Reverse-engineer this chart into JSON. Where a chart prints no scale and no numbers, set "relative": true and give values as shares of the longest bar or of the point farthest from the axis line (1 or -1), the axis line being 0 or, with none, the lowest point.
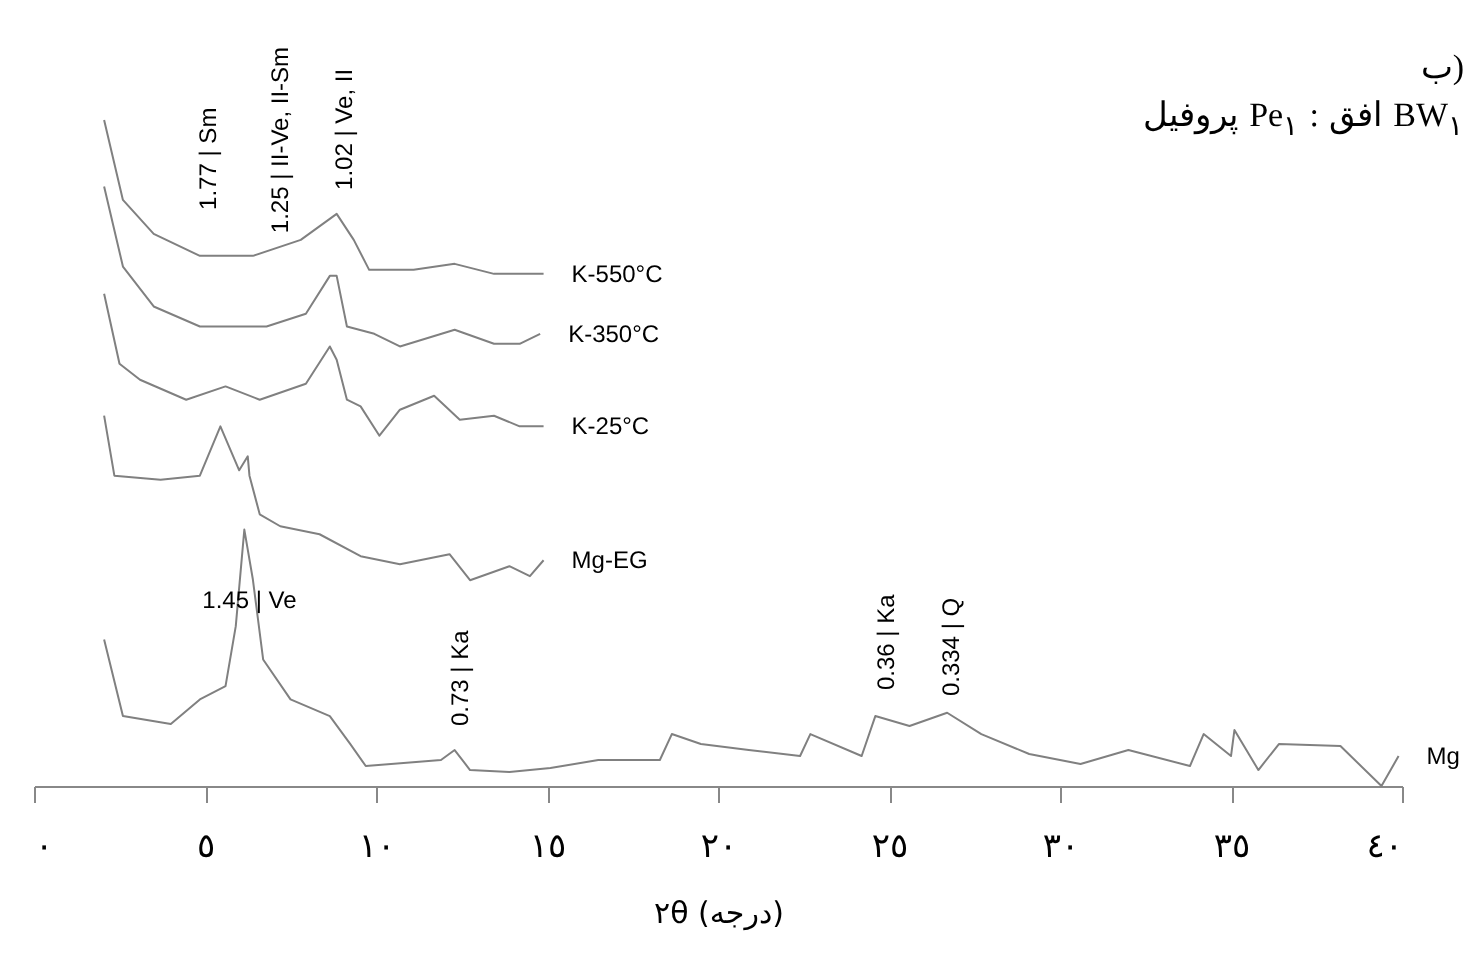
{
  "chart_data": {
    "type": "line",
    "relative": true,
    "title": "ب)",
    "subtitle": "پروفیل Pe$_{١}$ : افق BW$_{١}$",
    "xlabel": "٢θ (درجه)",
    "xlim": [
      0,
      40
    ],
    "xticks": [
      {
        "value": 0,
        "label": "٠"
      },
      {
        "value": 5,
        "label": "٥"
      },
      {
        "value": 10,
        "label": "١٠"
      },
      {
        "value": 15,
        "label": "١٥"
      },
      {
        "value": 20,
        "label": "٢٠"
      },
      {
        "value": 25,
        "label": "٢٥"
      },
      {
        "value": 30,
        "label": "٣٠"
      },
      {
        "value": 35,
        "label": "٣٥"
      },
      {
        "value": 40,
        "label": "٤٠"
      }
    ],
    "series": [
      {
        "name": "K-550°C",
        "color": "#808080",
        "x": [
          2.05,
          2.6,
          3.5,
          4.85,
          6.4,
          7.8,
          8.85,
          9.35,
          9.8,
          11.1,
          12.3,
          13.45,
          14.9
        ],
        "values": [
          1.0,
          0.88,
          0.829,
          0.796,
          0.796,
          0.82,
          0.859,
          0.82,
          0.775,
          0.775,
          0.784,
          0.769,
          0.769
        ]
      },
      {
        "name": "K-350°C",
        "color": "#808080",
        "x": [
          2.05,
          2.6,
          3.5,
          4.85,
          6.8,
          7.95,
          8.65,
          8.85,
          9.15,
          9.95,
          10.7,
          12.3,
          13.45,
          14.2,
          14.8
        ],
        "values": [
          0.9,
          0.78,
          0.72,
          0.69,
          0.69,
          0.709,
          0.766,
          0.766,
          0.69,
          0.679,
          0.66,
          0.685,
          0.664,
          0.664,
          0.679
        ]
      },
      {
        "name": "K-25°C",
        "color": "#808080",
        "x": [
          2.05,
          2.5,
          3.1,
          4.45,
          5.6,
          6.6,
          7.95,
          8.65,
          8.85,
          9.15,
          9.55,
          10.1,
          10.7,
          11.7,
          12.45,
          13.45,
          14.2,
          14.9
        ],
        "values": [
          0.739,
          0.634,
          0.61,
          0.58,
          0.6,
          0.58,
          0.604,
          0.66,
          0.64,
          0.58,
          0.57,
          0.526,
          0.565,
          0.586,
          0.55,
          0.556,
          0.54,
          0.54
        ]
      },
      {
        "name": "Mg-EG",
        "color": "#808080",
        "x": [
          2.05,
          2.35,
          3.7,
          4.85,
          5.45,
          6.0,
          6.25,
          6.3,
          6.6,
          7.2,
          8.35,
          9.55,
          10.7,
          12.15,
          12.75,
          13.9,
          14.5,
          14.9
        ],
        "values": [
          0.556,
          0.466,
          0.46,
          0.466,
          0.54,
          0.474,
          0.495,
          0.466,
          0.408,
          0.39,
          0.378,
          0.345,
          0.333,
          0.348,
          0.309,
          0.33,
          0.315,
          0.339
        ]
      },
      {
        "name": "Mg",
        "color": "#808080",
        "x": [
          2.05,
          2.6,
          4.0,
          4.85,
          5.6,
          5.9,
          6.15,
          6.4,
          6.7,
          7.5,
          8.65,
          9.25,
          9.7,
          11.9,
          12.3,
          12.75,
          13.9,
          15.1,
          16.5,
          18.3,
          18.65,
          19.5,
          20.9,
          22.4,
          22.7,
          24.2,
          24.6,
          25.6,
          26.7,
          27.7,
          29.1,
          30.6,
          32.0,
          33.8,
          34.2,
          35.0,
          35.1,
          35.8,
          36.4,
          38.2,
          39.4,
          39.9
        ],
        "values": [
          0.22,
          0.105,
          0.093,
          0.13,
          0.15,
          0.24,
          0.385,
          0.31,
          0.19,
          0.13,
          0.105,
          0.063,
          0.03,
          0.039,
          0.054,
          0.024,
          0.021,
          0.027,
          0.039,
          0.039,
          0.078,
          0.063,
          0.054,
          0.045,
          0.078,
          0.045,
          0.105,
          0.09,
          0.11,
          0.078,
          0.048,
          0.033,
          0.054,
          0.03,
          0.078,
          0.045,
          0.084,
          0.024,
          0.063,
          0.06,
          0.0,
          0.045
        ]
      }
    ],
    "annotations": [
      "1.77 | Sm",
      "1.25 | II-Ve, II-Sm",
      "1.02 | Ve, II",
      "1.45 | Ve",
      "0.73 | Ka",
      "0.36 | Ka",
      "0.334 | Q"
    ]
  }
}
